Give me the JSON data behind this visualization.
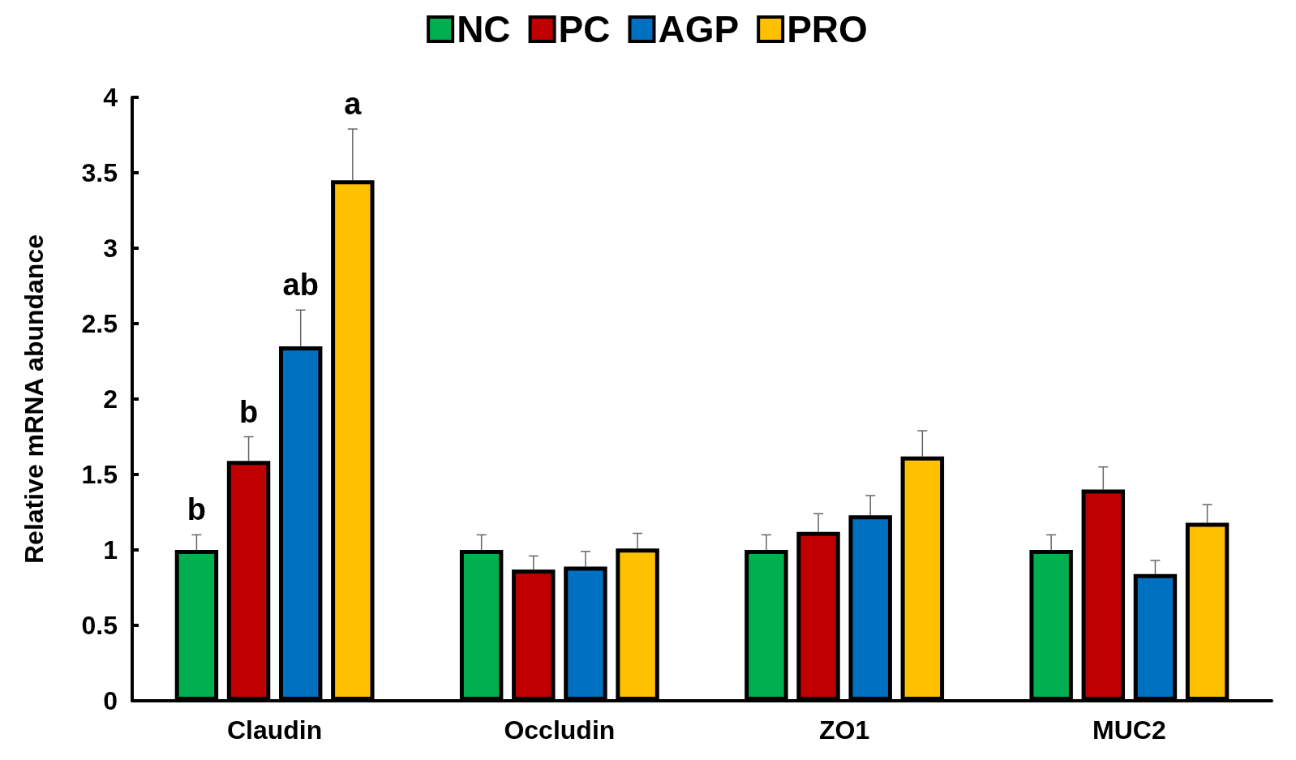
{
  "chart_data": {
    "type": "bar",
    "ylabel": "Relative mRNA abundance",
    "categories": [
      "Claudin",
      "Occludin",
      "ZO1",
      "MUC2"
    ],
    "ylim": [
      0,
      4
    ],
    "yticks": [
      0,
      0.5,
      1,
      1.5,
      2,
      2.5,
      3,
      3.5,
      4
    ],
    "legend": "top",
    "series": [
      {
        "name": "NC",
        "color": "#00b050",
        "values": [
          1.0,
          1.0,
          1.0,
          1.0
        ],
        "errors": [
          [
            1.0,
            1.1
          ],
          [
            1.0,
            1.1
          ],
          [
            1.0,
            1.1
          ],
          [
            1.0,
            1.1
          ]
        ],
        "value_labels": [
          "b",
          null,
          null,
          null
        ]
      },
      {
        "name": "PC",
        "color": "#c00000",
        "values": [
          1.59,
          0.87,
          1.12,
          1.4
        ],
        "errors": [
          [
            1.59,
            1.75
          ],
          [
            0.87,
            0.96
          ],
          [
            1.12,
            1.24
          ],
          [
            1.4,
            1.55
          ]
        ],
        "value_labels": [
          "b",
          null,
          null,
          null
        ]
      },
      {
        "name": "AGP",
        "color": "#0070c0",
        "values": [
          2.35,
          0.89,
          1.23,
          0.84
        ],
        "errors": [
          [
            2.35,
            2.59
          ],
          [
            0.89,
            0.99
          ],
          [
            1.23,
            1.36
          ],
          [
            0.84,
            0.93
          ]
        ],
        "value_labels": [
          "ab",
          null,
          null,
          null
        ]
      },
      {
        "name": "PRO",
        "color": "#ffc000",
        "values": [
          3.45,
          1.01,
          1.62,
          1.18
        ],
        "errors": [
          [
            3.45,
            3.79
          ],
          [
            1.01,
            1.11
          ],
          [
            1.62,
            1.79
          ],
          [
            1.18,
            1.3
          ]
        ],
        "value_labels": [
          "a",
          null,
          null,
          null
        ]
      }
    ]
  }
}
